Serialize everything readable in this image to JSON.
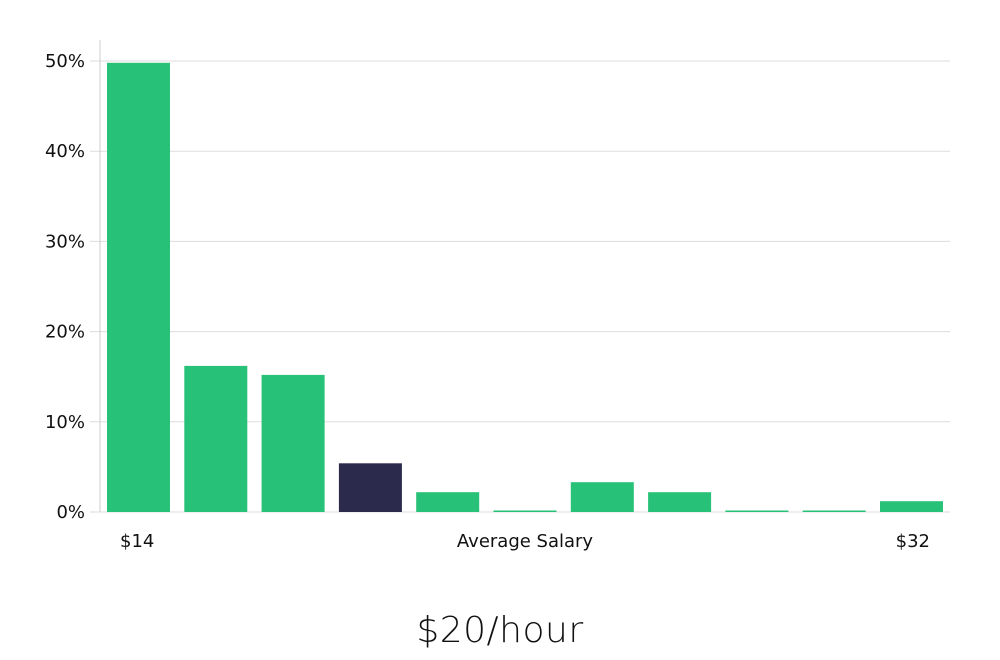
{
  "headline": "$20/hour",
  "chart_data": {
    "type": "bar",
    "ylabel": "",
    "ylim": [
      0,
      50
    ],
    "yticks": [
      "0%",
      "10%",
      "20%",
      "30%",
      "40%",
      "50%"
    ],
    "ytick_values": [
      0,
      10,
      20,
      30,
      40,
      50
    ],
    "x_labels": {
      "left": "$14",
      "center": "Average Salary",
      "right": "$32"
    },
    "values": [
      49.8,
      16.2,
      15.2,
      5.4,
      2.2,
      0.1,
      3.3,
      2.2,
      0.1,
      0.1,
      1.2
    ],
    "highlight_index": 3,
    "colors": {
      "bar": "#27c178",
      "bar_highlight": "#2b2a4c",
      "grid": "#dddddd",
      "axis": "#cccccc"
    },
    "grid": true
  }
}
